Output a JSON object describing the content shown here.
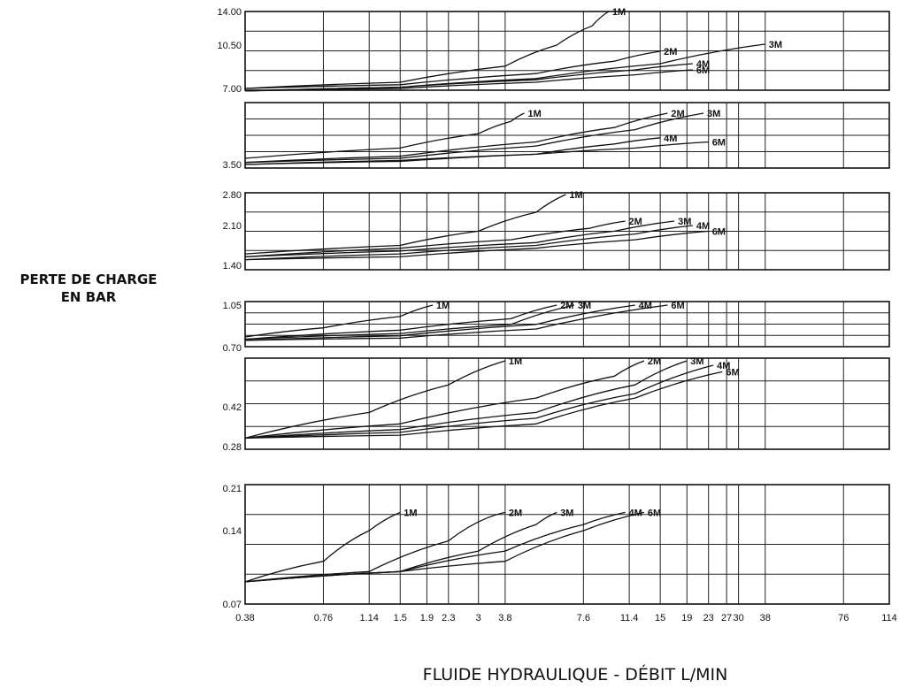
{
  "ylabel_lines": [
    "PERTE DE CHARGE",
    "EN BAR"
  ],
  "xlabel": "FLUIDE HYDRAULIQUE - DÉBIT L/MIN",
  "chart_data": {
    "type": "line",
    "x_scale": "log",
    "x_ticks": [
      "0.38",
      "0.76",
      "1.14",
      "1.5",
      "1.9",
      "2.3",
      "3",
      "3.8",
      "7.6",
      "11.4",
      "15",
      "19",
      "23",
      "27",
      "30",
      "38",
      "76",
      "114"
    ],
    "x_tick_values": [
      0.38,
      0.76,
      1.14,
      1.5,
      1.9,
      2.3,
      3,
      3.8,
      7.6,
      11.4,
      15,
      19,
      23,
      27,
      30,
      38,
      76,
      114
    ],
    "xlim": [
      0.38,
      114
    ],
    "grid": true,
    "panels": [
      {
        "y_ticks": [
          "14.00",
          "10.50",
          "7.00"
        ],
        "series": [
          {
            "name": "1M",
            "points": [
              [
                0.38,
                7.0
              ],
              [
                1.5,
                7.5
              ],
              [
                3.8,
                8.8
              ],
              [
                6.0,
                10.5
              ],
              [
                8.2,
                12.5
              ],
              [
                9.5,
                14.0
              ]
            ]
          },
          {
            "name": "2M",
            "points": [
              [
                0.38,
                7.0
              ],
              [
                1.5,
                7.3
              ],
              [
                5.0,
                8.2
              ],
              [
                10.0,
                9.2
              ],
              [
                15.0,
                10.0
              ]
            ]
          },
          {
            "name": "3M",
            "points": [
              [
                0.38,
                6.8
              ],
              [
                1.5,
                7.1
              ],
              [
                5.0,
                7.8
              ],
              [
                15.0,
                9.0
              ],
              [
                38.0,
                10.6
              ]
            ]
          },
          {
            "name": "4M",
            "points": [
              [
                0.38,
                6.8
              ],
              [
                1.5,
                7.1
              ],
              [
                5.0,
                7.7
              ],
              [
                12.0,
                8.5
              ],
              [
                20.0,
                9.0
              ]
            ]
          },
          {
            "name": "6M",
            "points": [
              [
                0.38,
                6.8
              ],
              [
                1.5,
                7.0
              ],
              [
                5.0,
                7.5
              ],
              [
                12.0,
                8.1
              ],
              [
                20.0,
                8.5
              ]
            ]
          }
        ]
      },
      {
        "y_ticks": [
          "3.50"
        ],
        "series": [
          {
            "name": "1M",
            "points": [
              [
                0.38,
                3.8
              ],
              [
                1.5,
                4.3
              ],
              [
                3.0,
                5.0
              ],
              [
                4.0,
                5.6
              ],
              [
                4.5,
                6.0
              ]
            ]
          },
          {
            "name": "2M",
            "points": [
              [
                0.38,
                3.6
              ],
              [
                1.5,
                3.9
              ],
              [
                5.0,
                4.6
              ],
              [
                10.0,
                5.3
              ],
              [
                16.0,
                6.0
              ]
            ]
          },
          {
            "name": "3M",
            "points": [
              [
                0.38,
                3.6
              ],
              [
                1.5,
                3.8
              ],
              [
                5.0,
                4.4
              ],
              [
                12.0,
                5.2
              ],
              [
                22.0,
                6.0
              ]
            ]
          },
          {
            "name": "4M",
            "points": [
              [
                0.38,
                3.5
              ],
              [
                1.5,
                3.7
              ],
              [
                5.0,
                4.0
              ],
              [
                10.0,
                4.5
              ],
              [
                15.0,
                4.8
              ]
            ]
          },
          {
            "name": "6M",
            "points": [
              [
                0.38,
                3.5
              ],
              [
                1.5,
                3.65
              ],
              [
                5.0,
                4.0
              ],
              [
                12.0,
                4.3
              ],
              [
                23.0,
                4.6
              ]
            ]
          }
        ]
      },
      {
        "y_ticks": [
          "2.80",
          "2.10",
          "1.40"
        ],
        "series": [
          {
            "name": "1M",
            "points": [
              [
                0.38,
                1.6
              ],
              [
                1.5,
                1.75
              ],
              [
                3.0,
                2.0
              ],
              [
                5.0,
                2.4
              ],
              [
                6.5,
                2.8
              ]
            ]
          },
          {
            "name": "2M",
            "points": [
              [
                0.38,
                1.55
              ],
              [
                1.5,
                1.7
              ],
              [
                4.0,
                1.85
              ],
              [
                8.0,
                2.05
              ],
              [
                11.0,
                2.2
              ]
            ]
          },
          {
            "name": "3M",
            "points": [
              [
                0.38,
                1.55
              ],
              [
                1.5,
                1.65
              ],
              [
                5.0,
                1.8
              ],
              [
                10.0,
                2.0
              ],
              [
                17.0,
                2.2
              ]
            ]
          },
          {
            "name": "4M",
            "points": [
              [
                0.38,
                1.5
              ],
              [
                1.5,
                1.6
              ],
              [
                5.0,
                1.75
              ],
              [
                12.0,
                1.95
              ],
              [
                20.0,
                2.1
              ]
            ]
          },
          {
            "name": "6M",
            "points": [
              [
                0.38,
                1.5
              ],
              [
                1.5,
                1.55
              ],
              [
                5.0,
                1.7
              ],
              [
                12.0,
                1.85
              ],
              [
                23.0,
                2.0
              ]
            ]
          }
        ]
      },
      {
        "y_ticks": [
          "1.05",
          "0.70"
        ],
        "series": [
          {
            "name": "1M",
            "points": [
              [
                0.38,
                0.77
              ],
              [
                0.76,
                0.85
              ],
              [
                1.5,
                0.95
              ],
              [
                2.0,
                1.05
              ]
            ]
          },
          {
            "name": "2M",
            "points": [
              [
                0.38,
                0.75
              ],
              [
                1.5,
                0.83
              ],
              [
                4.0,
                0.93
              ],
              [
                6.0,
                1.05
              ]
            ]
          },
          {
            "name": "3M",
            "points": [
              [
                0.38,
                0.75
              ],
              [
                1.5,
                0.8
              ],
              [
                4.0,
                0.88
              ],
              [
                7.0,
                1.05
              ]
            ]
          },
          {
            "name": "4M",
            "points": [
              [
                0.38,
                0.74
              ],
              [
                1.5,
                0.78
              ],
              [
                5.0,
                0.88
              ],
              [
                12.0,
                1.05
              ]
            ]
          },
          {
            "name": "6M",
            "points": [
              [
                0.38,
                0.74
              ],
              [
                1.5,
                0.76
              ],
              [
                5.0,
                0.84
              ],
              [
                16.0,
                1.05
              ]
            ]
          }
        ]
      },
      {
        "y_ticks": [
          "0.42",
          "0.28"
        ],
        "series": [
          {
            "name": "1M",
            "points": [
              [
                0.38,
                0.31
              ],
              [
                1.14,
                0.4
              ],
              [
                2.3,
                0.52
              ],
              [
                3.8,
                0.63
              ]
            ]
          },
          {
            "name": "2M",
            "points": [
              [
                0.38,
                0.31
              ],
              [
                1.5,
                0.36
              ],
              [
                5.0,
                0.46
              ],
              [
                10.0,
                0.56
              ],
              [
                13.0,
                0.63
              ]
            ]
          },
          {
            "name": "3M",
            "points": [
              [
                0.38,
                0.31
              ],
              [
                1.5,
                0.34
              ],
              [
                5.0,
                0.4
              ],
              [
                12.0,
                0.52
              ],
              [
                19.0,
                0.63
              ]
            ]
          },
          {
            "name": "4M",
            "points": [
              [
                0.38,
                0.31
              ],
              [
                1.5,
                0.33
              ],
              [
                5.0,
                0.38
              ],
              [
                12.0,
                0.48
              ],
              [
                24.0,
                0.61
              ]
            ]
          },
          {
            "name": "6M",
            "points": [
              [
                0.38,
                0.31
              ],
              [
                1.5,
                0.32
              ],
              [
                5.0,
                0.36
              ],
              [
                12.0,
                0.46
              ],
              [
                26.0,
                0.58
              ]
            ]
          }
        ]
      },
      {
        "y_ticks": [
          "0.21",
          "0.14",
          "0.07"
        ],
        "series": [
          {
            "name": "1M",
            "points": [
              [
                0.38,
                0.09
              ],
              [
                0.76,
                0.11
              ],
              [
                1.14,
                0.14
              ],
              [
                1.5,
                0.17
              ]
            ]
          },
          {
            "name": "2M",
            "points": [
              [
                0.38,
                0.09
              ],
              [
                1.14,
                0.1
              ],
              [
                2.3,
                0.13
              ],
              [
                3.2,
                0.16
              ],
              [
                3.8,
                0.17
              ]
            ]
          },
          {
            "name": "3M",
            "points": [
              [
                0.38,
                0.09
              ],
              [
                1.5,
                0.1
              ],
              [
                3.0,
                0.12
              ],
              [
                5.0,
                0.15
              ],
              [
                6.0,
                0.17
              ]
            ]
          },
          {
            "name": "4M",
            "points": [
              [
                0.38,
                0.09
              ],
              [
                1.5,
                0.1
              ],
              [
                3.8,
                0.12
              ],
              [
                7.6,
                0.15
              ],
              [
                11.0,
                0.17
              ]
            ]
          },
          {
            "name": "6M",
            "points": [
              [
                0.38,
                0.09
              ],
              [
                1.5,
                0.1
              ],
              [
                3.8,
                0.11
              ],
              [
                7.6,
                0.14
              ],
              [
                13.0,
                0.17
              ]
            ]
          }
        ]
      }
    ]
  }
}
